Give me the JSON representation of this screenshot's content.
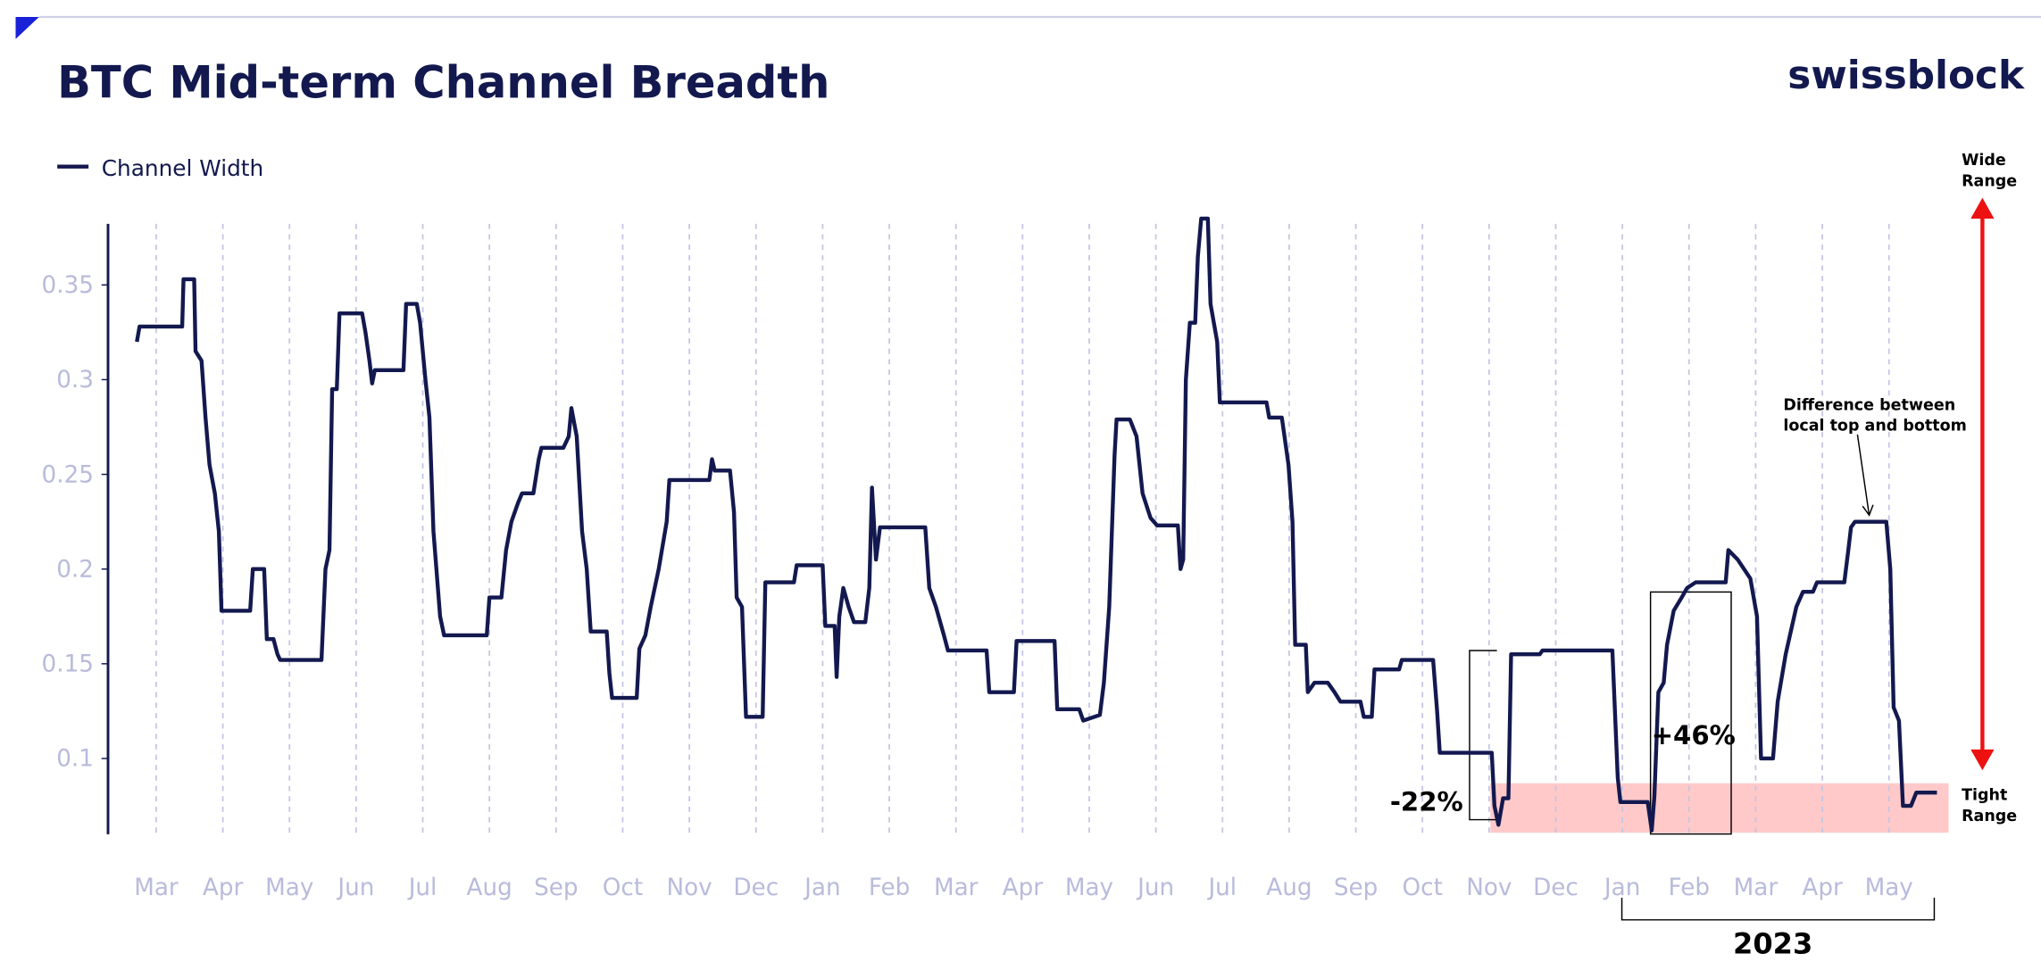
{
  "chart_data": {
    "type": "line",
    "title": "BTC Mid-term Channel Breadth",
    "brand": "swissblock",
    "annotations": {
      "wide_range": [
        "Wide",
        "Range"
      ],
      "tight_range": [
        "Tight",
        "Range"
      ],
      "difference": [
        "Difference between",
        "local top and bottom"
      ],
      "drop": "-22%",
      "rise": "+46%",
      "year": "2023"
    },
    "x": [
      -0.29,
      -0.25,
      0.39,
      0.41,
      0.57,
      0.59,
      0.68,
      0.74,
      0.8,
      0.88,
      0.94,
      0.98,
      1.41,
      1.45,
      1.62,
      1.66,
      1.76,
      1.82,
      1.86,
      2.48,
      2.54,
      2.6,
      2.64,
      2.71,
      2.75,
      3.09,
      3.14,
      3.2,
      3.24,
      3.28,
      3.71,
      3.75,
      3.91,
      3.96,
      4.04,
      4.1,
      4.16,
      4.26,
      4.32,
      4.96,
      5.0,
      5.18,
      5.25,
      5.33,
      5.43,
      5.49,
      5.66,
      5.74,
      5.78,
      6.11,
      6.19,
      6.23,
      6.31,
      6.39,
      6.46,
      6.52,
      6.76,
      6.8,
      6.84,
      7.21,
      7.25,
      7.34,
      7.42,
      7.54,
      7.66,
      7.7,
      8.3,
      8.34,
      8.38,
      8.61,
      8.67,
      8.71,
      8.79,
      8.85,
      9.1,
      9.14,
      9.57,
      9.61,
      10.0,
      10.04,
      10.18,
      10.21,
      10.25,
      10.31,
      10.39,
      10.47,
      10.64,
      10.7,
      10.74,
      10.8,
      10.86,
      11.54,
      11.6,
      11.7,
      11.82,
      11.88,
      12.46,
      12.5,
      12.87,
      12.91,
      13.48,
      13.52,
      13.85,
      13.91,
      14.16,
      14.22,
      14.3,
      14.38,
      14.41,
      14.61,
      14.71,
      14.8,
      14.92,
      15.02,
      15.33,
      15.37,
      15.41,
      15.45,
      15.51,
      15.59,
      15.63,
      15.68,
      15.78,
      15.82,
      15.92,
      15.96,
      16.66,
      16.7,
      16.89,
      16.99,
      17.05,
      17.09,
      17.25,
      17.28,
      17.38,
      17.58,
      17.68,
      17.77,
      18.07,
      18.12,
      18.24,
      18.28,
      18.65,
      18.69,
      19.16,
      19.22,
      19.26,
      20.04,
      20.08,
      20.14,
      20.21,
      20.29,
      20.33,
      20.76,
      20.8,
      21.85,
      21.93,
      21.97,
      22.38,
      22.44,
      22.48,
      22.54,
      22.62,
      22.67,
      22.77,
      22.89,
      22.97,
      23.1,
      23.55,
      23.59,
      23.73,
      23.92,
      24.02,
      24.08,
      24.26,
      24.33,
      24.45,
      24.61,
      24.71,
      24.86,
      24.92,
      25.33,
      25.39,
      25.43,
      25.49,
      25.96,
      26.02,
      26.07,
      26.15,
      26.21,
      26.33,
      26.41,
      26.72
    ],
    "series": [
      {
        "name": "Channel Width",
        "color": "#13194f",
        "values": [
          0.32,
          0.328,
          0.328,
          0.353,
          0.353,
          0.315,
          0.31,
          0.28,
          0.255,
          0.24,
          0.22,
          0.178,
          0.178,
          0.2,
          0.2,
          0.163,
          0.163,
          0.155,
          0.152,
          0.152,
          0.2,
          0.21,
          0.295,
          0.295,
          0.335,
          0.335,
          0.325,
          0.31,
          0.298,
          0.305,
          0.305,
          0.34,
          0.34,
          0.33,
          0.3,
          0.28,
          0.22,
          0.175,
          0.165,
          0.165,
          0.185,
          0.185,
          0.21,
          0.225,
          0.235,
          0.24,
          0.24,
          0.258,
          0.264,
          0.264,
          0.27,
          0.285,
          0.27,
          0.22,
          0.2,
          0.167,
          0.167,
          0.145,
          0.132,
          0.132,
          0.158,
          0.165,
          0.18,
          0.2,
          0.225,
          0.247,
          0.247,
          0.258,
          0.252,
          0.252,
          0.23,
          0.185,
          0.18,
          0.122,
          0.122,
          0.193,
          0.193,
          0.202,
          0.202,
          0.17,
          0.17,
          0.143,
          0.175,
          0.19,
          0.18,
          0.172,
          0.172,
          0.19,
          0.243,
          0.205,
          0.222,
          0.222,
          0.19,
          0.18,
          0.165,
          0.157,
          0.157,
          0.135,
          0.135,
          0.162,
          0.162,
          0.126,
          0.126,
          0.12,
          0.123,
          0.14,
          0.18,
          0.26,
          0.279,
          0.279,
          0.27,
          0.24,
          0.227,
          0.223,
          0.223,
          0.2,
          0.205,
          0.3,
          0.33,
          0.33,
          0.365,
          0.385,
          0.385,
          0.34,
          0.32,
          0.288,
          0.288,
          0.28,
          0.28,
          0.255,
          0.225,
          0.16,
          0.16,
          0.135,
          0.14,
          0.14,
          0.135,
          0.13,
          0.13,
          0.122,
          0.122,
          0.147,
          0.147,
          0.152,
          0.152,
          0.125,
          0.103,
          0.103,
          0.075,
          0.065,
          0.079,
          0.079,
          0.155,
          0.155,
          0.157,
          0.157,
          0.09,
          0.077,
          0.077,
          0.062,
          0.08,
          0.135,
          0.14,
          0.16,
          0.178,
          0.185,
          0.19,
          0.193,
          0.193,
          0.21,
          0.205,
          0.195,
          0.175,
          0.1,
          0.1,
          0.13,
          0.155,
          0.18,
          0.188,
          0.188,
          0.193,
          0.193,
          0.21,
          0.222,
          0.225,
          0.225,
          0.2,
          0.127,
          0.12,
          0.075,
          0.075,
          0.082,
          0.082
        ]
      }
    ],
    "xlim": [
      -0.75,
      27
    ],
    "xticks": [
      {
        "value": 0,
        "label": "Mar"
      },
      {
        "value": 1,
        "label": "Apr"
      },
      {
        "value": 2,
        "label": "May"
      },
      {
        "value": 3,
        "label": "Jun"
      },
      {
        "value": 4,
        "label": "Jul"
      },
      {
        "value": 5,
        "label": "Aug"
      },
      {
        "value": 6,
        "label": "Sep"
      },
      {
        "value": 7,
        "label": "Oct"
      },
      {
        "value": 8,
        "label": "Nov"
      },
      {
        "value": 9,
        "label": "Dec"
      },
      {
        "value": 10,
        "label": "Jan"
      },
      {
        "value": 11,
        "label": "Feb"
      },
      {
        "value": 12,
        "label": "Mar"
      },
      {
        "value": 13,
        "label": "Apr"
      },
      {
        "value": 14,
        "label": "May"
      },
      {
        "value": 15,
        "label": "Jun"
      },
      {
        "value": 16,
        "label": "Jul"
      },
      {
        "value": 17,
        "label": "Aug"
      },
      {
        "value": 18,
        "label": "Sep"
      },
      {
        "value": 19,
        "label": "Oct"
      },
      {
        "value": 20,
        "label": "Nov"
      },
      {
        "value": 21,
        "label": "Dec"
      },
      {
        "value": 22,
        "label": "Jan"
      },
      {
        "value": 23,
        "label": "Feb"
      },
      {
        "value": 24,
        "label": "Mar"
      },
      {
        "value": 25,
        "label": "Apr"
      },
      {
        "value": 26,
        "label": "May"
      }
    ],
    "ylim": [
      0.06,
      0.385
    ],
    "yticks": [
      0.1,
      0.15,
      0.2,
      0.25,
      0.3,
      0.35
    ],
    "grid": true
  }
}
